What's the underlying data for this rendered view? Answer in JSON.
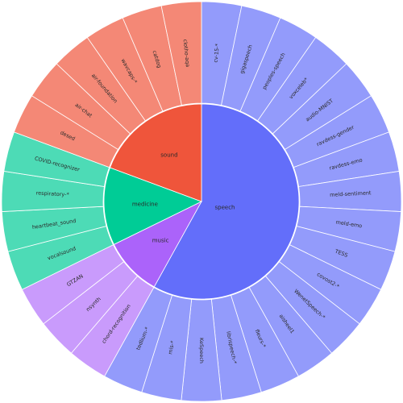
{
  "chart_data": {
    "type": "sunburst",
    "title": "",
    "groups": [
      {
        "name": "speech",
        "color": "#636efa",
        "leaf_color": "#939bfb",
        "children": [
          "cv-15-*",
          "gigaspeech",
          "peoples-speech",
          "voxceleb*",
          "audio-MNIST",
          "ravdess-gender",
          "ravdess-emo",
          "meld-sentiment",
          "meld-emo",
          "TESS",
          "covost2-*",
          "WenetSpeech-*",
          "aisheel1",
          "fleurs-*",
          "librispeech-*",
          "KeSpeech",
          "mls-*",
          "tedlium-*"
        ]
      },
      {
        "name": "music",
        "color": "#ab63fa",
        "leaf_color": "#c99bfc",
        "children": [
          "chord-recognition",
          "nsynth",
          "GTZAN"
        ]
      },
      {
        "name": "medicine",
        "color": "#00cc96",
        "leaf_color": "#4ddbb6",
        "children": [
          "vocalsound",
          "heartbeat_sound",
          "respiratory-*",
          "COVID-recognizer"
        ]
      },
      {
        "name": "sound",
        "color": "#ef553b",
        "leaf_color": "#f48876",
        "children": [
          "desed",
          "air-chat",
          "air-foundation",
          "wavcaps-*",
          "catdog",
          "clotho-aqa"
        ]
      }
    ]
  }
}
